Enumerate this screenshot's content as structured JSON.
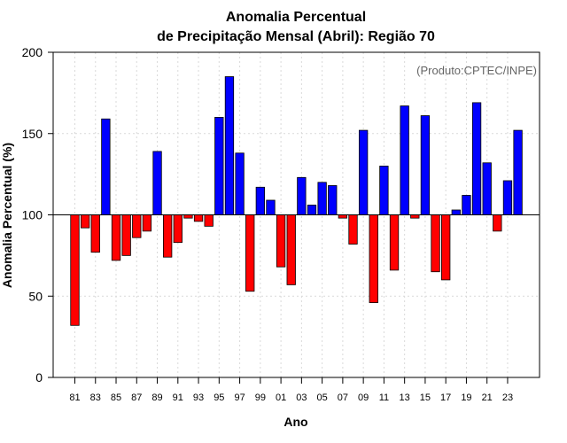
{
  "chart_data": {
    "type": "bar",
    "title_line1": "Anomalia Percentual",
    "title_line2": "de Precipitação Mensal (Abril): Região 70",
    "xlabel": "Ano",
    "ylabel": "Anomalia Percentual (%)",
    "annotation": "(Produto:CPTEC/INPE)",
    "baseline": 100,
    "ylim": [
      0,
      200
    ],
    "yticks": [
      0,
      50,
      100,
      150,
      200
    ],
    "grid": true,
    "colors": {
      "above": "#0000ff",
      "below": "#ff0000",
      "edge": "#000000"
    },
    "categories": [
      "81",
      "82",
      "83",
      "84",
      "85",
      "86",
      "87",
      "88",
      "89",
      "90",
      "91",
      "92",
      "93",
      "94",
      "95",
      "96",
      "97",
      "98",
      "99",
      "00",
      "01",
      "02",
      "03",
      "04",
      "05",
      "06",
      "07",
      "08",
      "09",
      "10",
      "11",
      "12",
      "13",
      "14",
      "15",
      "16",
      "17",
      "18",
      "19",
      "20",
      "21",
      "22",
      "23",
      "24"
    ],
    "tick_labels": [
      "81",
      "83",
      "85",
      "87",
      "89",
      "91",
      "93",
      "95",
      "97",
      "99",
      "01",
      "03",
      "05",
      "07",
      "09",
      "11",
      "13",
      "15",
      "17",
      "19",
      "21",
      "23"
    ],
    "values": [
      32,
      92,
      77,
      159,
      72,
      75,
      86,
      90,
      139,
      74,
      83,
      98,
      96,
      93,
      160,
      185,
      138,
      53,
      117,
      109,
      68,
      57,
      123,
      106,
      120,
      118,
      98,
      82,
      152,
      46,
      130,
      66,
      167,
      98,
      161,
      65,
      60,
      103,
      112,
      169,
      132,
      90,
      121,
      152
    ]
  }
}
